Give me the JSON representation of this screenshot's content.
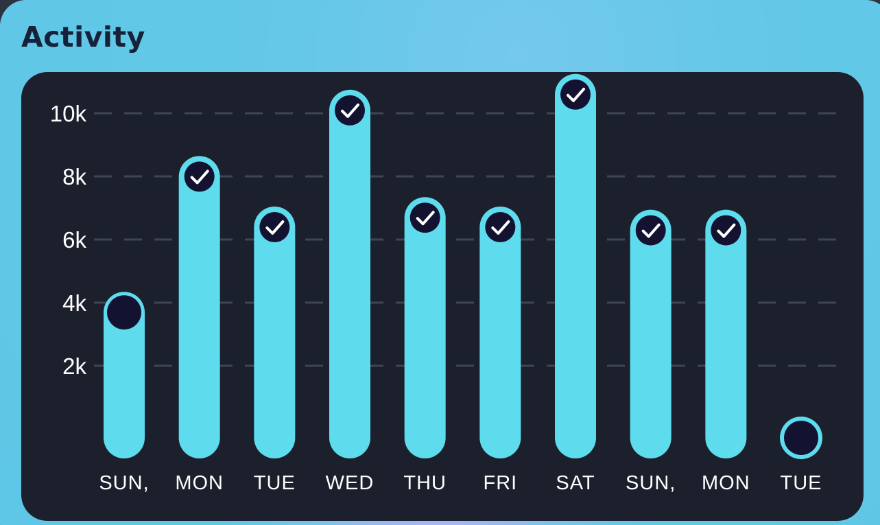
{
  "card": {
    "title": "Activity"
  },
  "colors": {
    "card_bg": "#63c8e8",
    "panel_bg": "#1b202c",
    "bar": "#5edcee",
    "marker": "#131331",
    "grid": "#3d4657",
    "title": "#17223a"
  },
  "icons": {
    "completed": "check-icon",
    "incomplete": "dot-icon"
  },
  "chart_data": {
    "type": "bar",
    "categories": [
      "SUN,",
      "MON",
      "TUE",
      "WED",
      "THU",
      "FRI",
      "SAT",
      "SUN,",
      "MON",
      "TUE"
    ],
    "values": [
      3800,
      8100,
      6500,
      10200,
      6800,
      6500,
      10700,
      6400,
      6400,
      0
    ],
    "completed": [
      false,
      true,
      true,
      true,
      true,
      true,
      true,
      true,
      true,
      false
    ],
    "ylim": [
      0,
      10500
    ],
    "yticks": [
      2000,
      4000,
      6000,
      8000,
      10000
    ],
    "ytick_labels": [
      "2k",
      "4k",
      "6k",
      "8k",
      "10k"
    ],
    "grid": true,
    "grid_style": "dashed",
    "title": "",
    "xlabel": "",
    "ylabel": ""
  }
}
